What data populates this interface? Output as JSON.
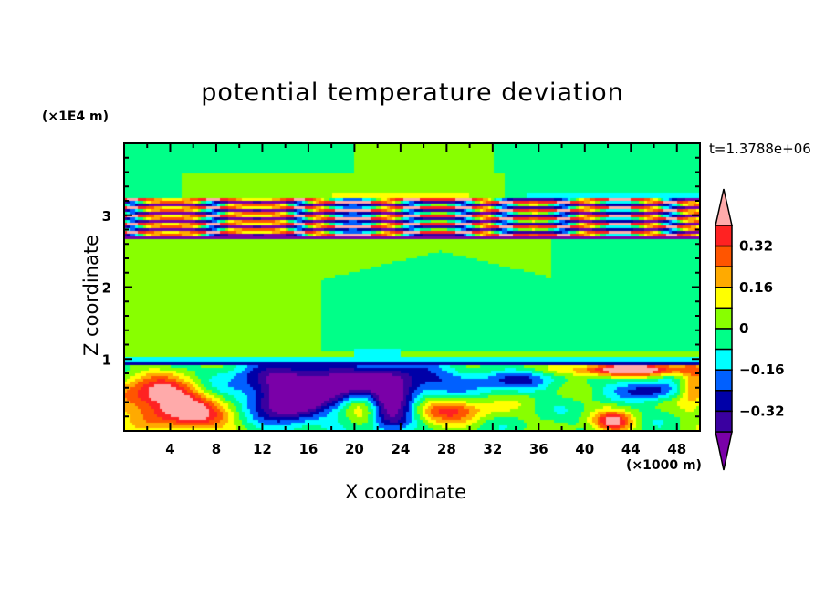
{
  "chart_data": {
    "type": "heatmap",
    "title": "potential temperature deviation",
    "xlabel": "X coordinate",
    "ylabel": "Z coordinate",
    "x_unit": "(×1000 m)",
    "y_unit": "(×1E4 m)",
    "time_label": "t=1.3788e+06",
    "xlim": [
      0,
      50
    ],
    "ylim": [
      0,
      4
    ],
    "x_ticks": [
      "4",
      "8",
      "12",
      "16",
      "20",
      "24",
      "28",
      "32",
      "36",
      "40",
      "44",
      "48"
    ],
    "x_tick_values": [
      4,
      8,
      12,
      16,
      20,
      24,
      28,
      32,
      36,
      40,
      44,
      48
    ],
    "y_ticks": [
      "1",
      "2",
      "3"
    ],
    "y_tick_values": [
      1,
      2,
      3
    ],
    "colorbar": {
      "levels": [
        -0.4,
        -0.32,
        -0.24,
        -0.16,
        -0.08,
        0,
        0.08,
        0.16,
        0.24,
        0.32,
        0.4
      ],
      "labels": [
        {
          "value": 0.32,
          "text": "0.32"
        },
        {
          "value": 0.16,
          "text": "0.16"
        },
        {
          "value": 0,
          "text": "0"
        },
        {
          "value": -0.16,
          "text": "−0.16"
        },
        {
          "value": -0.32,
          "text": "−0.32"
        }
      ],
      "colors": [
        "#7a00a8",
        "#3a00a0",
        "#0000a8",
        "#0060ff",
        "#00ffff",
        "#00ff88",
        "#88ff00",
        "#ffff00",
        "#ffaa00",
        "#ff5500",
        "#ff2222",
        "#ffaaaa"
      ],
      "extend": "both"
    }
  }
}
